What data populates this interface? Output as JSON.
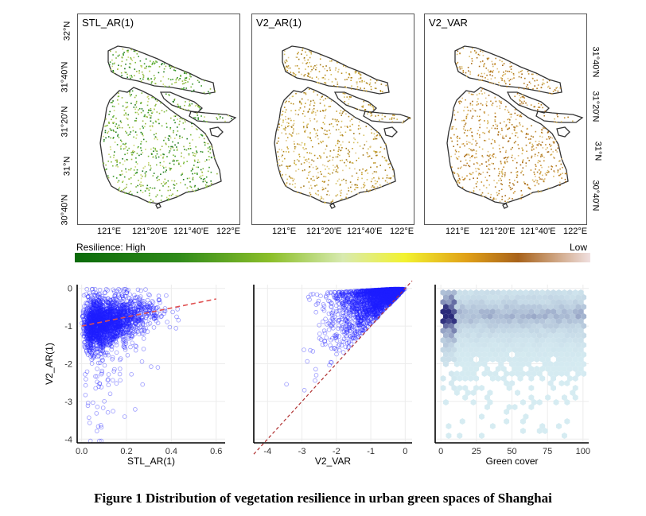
{
  "maps": {
    "panels": [
      "STL_AR(1)",
      "V2_AR(1)",
      "V2_VAR"
    ],
    "lon_ticks": [
      "121°E",
      "121°20'E",
      "121°40'E",
      "122°E"
    ],
    "lat_ticks_left": [
      "32°N",
      "31°40'N",
      "31°20'N",
      "31°N",
      "30°40'N"
    ],
    "lat_ticks_right": [
      "31°40'N",
      "31°20'N",
      "31°N",
      "30°40'N"
    ],
    "outline_color": "#333333"
  },
  "colorbar": {
    "left_label": "Resilience: High",
    "right_label": "Low",
    "colors": [
      "#0a6a0a",
      "#8cbf2a",
      "#d8eab0",
      "#f2f230",
      "#e0a018",
      "#a8621a",
      "#f0e0e0"
    ]
  },
  "chart_data": [
    {
      "type": "scatter",
      "xlabel": "STL_AR(1)",
      "ylabel": "V2_AR(1)",
      "xlim": [
        -0.02,
        0.64
      ],
      "ylim": [
        -4.1,
        0.1
      ],
      "xticks": [
        0.0,
        0.2,
        0.4,
        0.6
      ],
      "yticks": [
        0,
        -1,
        -2,
        -3,
        -4
      ],
      "trend_line": [
        [
          0.0,
          -1.0
        ],
        [
          0.6,
          -0.28
        ]
      ],
      "color": "#1f1fff",
      "trend_color": "#e05050",
      "grid": true
    },
    {
      "type": "scatter",
      "xlabel": "V2_VAR",
      "xlim": [
        -4.4,
        0.2
      ],
      "ylim": [
        -4.1,
        0.1
      ],
      "xticks": [
        -4,
        -3,
        -2,
        -1,
        0
      ],
      "identity_line": [
        [
          -4.4,
          -4.4
        ],
        [
          0.2,
          0.2
        ]
      ],
      "color": "#1f1fff",
      "trend_color": "#b03030",
      "grid": true
    },
    {
      "type": "heatmap",
      "xlabel": "Green cover",
      "xlim": [
        -4,
        104
      ],
      "ylim": [
        -4.1,
        0.1
      ],
      "xticks": [
        0,
        25,
        50,
        75,
        100
      ],
      "bin_shape": "hexagon",
      "color_low": "#d6ecf2",
      "color_high": "#2a2a7a",
      "grid": true
    }
  ],
  "caption": "Figure 1 Distribution of vegetation resilience in urban green spaces of Shanghai"
}
